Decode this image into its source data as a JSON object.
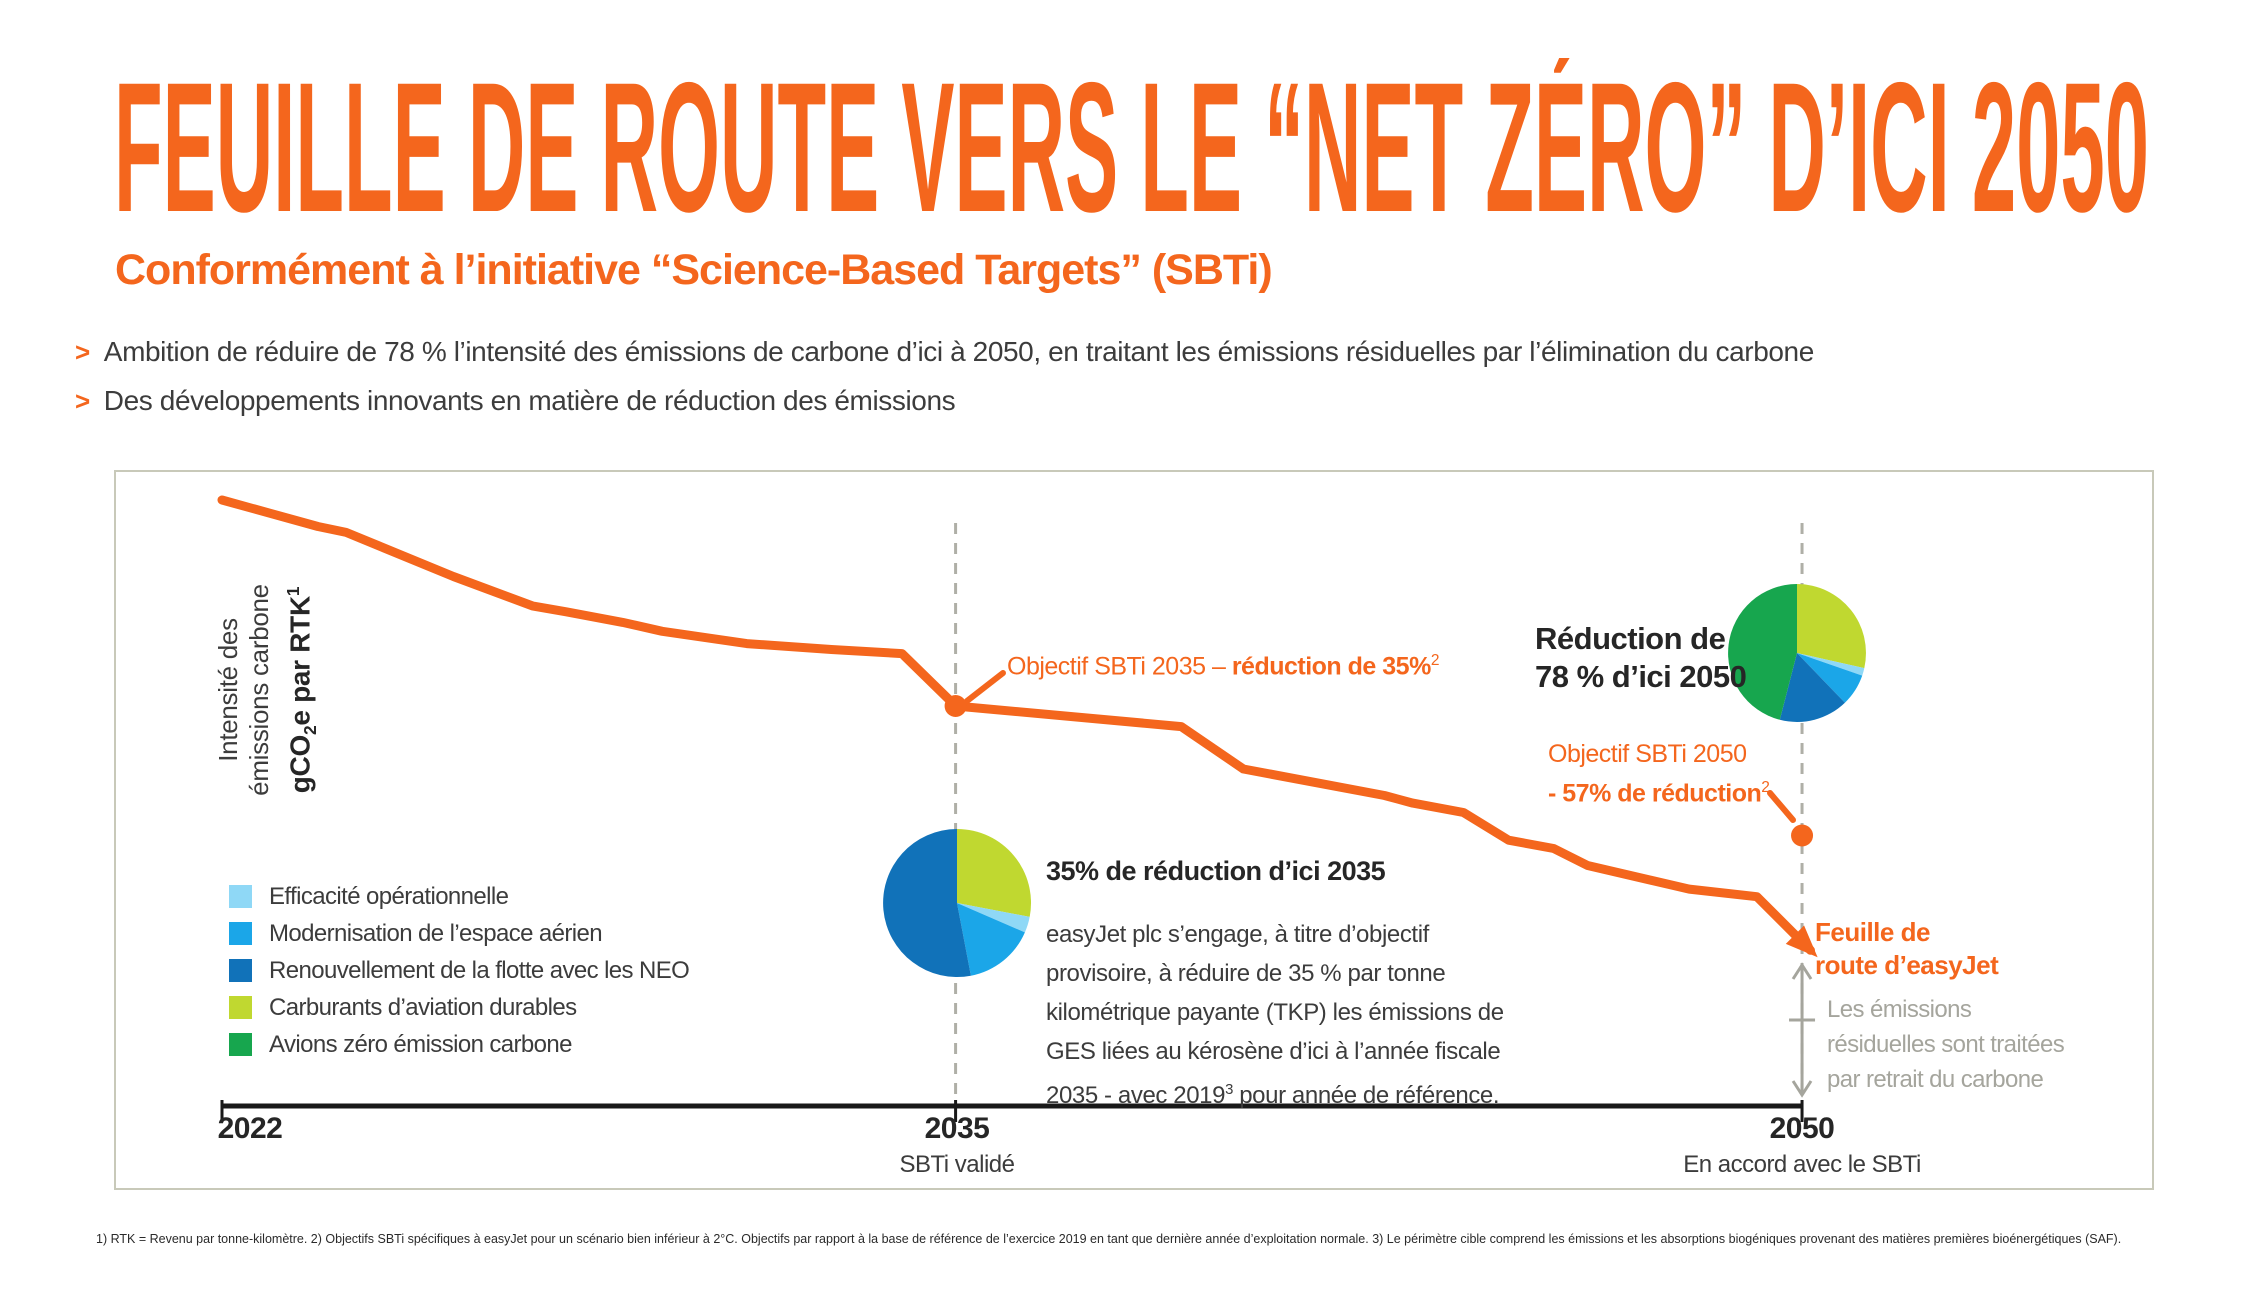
{
  "palette": {
    "orange": "#F4661D",
    "dash_gray": "#AFAFA7",
    "gray_text": "#A5A59D",
    "axis_black": "#191919"
  },
  "header": {
    "title": "FEUILLE DE ROUTE VERS LE “NET ZÉRO” D’ICI 2050",
    "subtitle": "Conformément à l’initiative “Science-Based Targets” (SBTi)"
  },
  "bullets": {
    "marker": ">",
    "items": [
      "Ambition de réduire de 78 % l’intensité des émissions de carbone d’ici à 2050, en traitant les émissions résiduelles par l’élimination du carbone",
      "Des développements innovants en matière de réduction des émissions"
    ]
  },
  "chart": {
    "y_axis": {
      "line1": "Intensité des",
      "line2": "émissions carbone",
      "bold_pre": "gCO",
      "bold_sub": "2",
      "bold_mid": "e par RTK",
      "bold_sup": "1"
    },
    "legend": [
      {
        "label": "Efficacité opérationnelle",
        "color": "#8FD8F6"
      },
      {
        "label": "Modernisation de l’espace aérien",
        "color": "#1BA6E8"
      },
      {
        "label": "Renouvellement de la flotte avec les NEO",
        "color": "#1172B9"
      },
      {
        "label": "Carburants d’aviation durables",
        "color": "#C0D830"
      },
      {
        "label": "Avions zéro émission carbone",
        "color": "#17A64E"
      }
    ],
    "sbti2035": {
      "prefix": "Objectif SBTi 2035 – ",
      "bold": "réduction de 35%",
      "sup": "2"
    },
    "reduction2050": {
      "line1": "Réduction de",
      "line2": "78 % d’ici 2050"
    },
    "sbti2050": {
      "line1": "Objectif SBTi 2050",
      "bold": "- 57% de réduction",
      "sup": "2"
    },
    "box2035": {
      "title": "35% de réduction d’ici 2035",
      "lines": [
        "easyJet plc s’engage, à titre d’objectif",
        "provisoire, à réduire de 35 % par tonne",
        "kilométrique payante (TKP) les émissions de",
        "GES liées au kérosène d’ici à l’année fiscale"
      ],
      "last_pre": "2035 - avec 2019",
      "last_sup": "3",
      "last_post": " pour année de référence."
    },
    "roadmap": {
      "line1": "Feuille de",
      "line2": "route d’easyJet"
    },
    "residual": {
      "line1": "Les émissions",
      "line2": "résiduelles sont traitées",
      "line3": "par retrait du carbone"
    },
    "x_axis": [
      {
        "year": "2022",
        "sub": ""
      },
      {
        "year": "2035",
        "sub": "SBTi validé"
      },
      {
        "year": "2050",
        "sub": "En accord avec le SBTi"
      }
    ]
  },
  "footnote": "1) RTK = Revenu par tonne-kilomètre.  2) Objectifs SBTi spécifiques à easyJet pour un scénario bien inférieur à 2°C. Objectifs par rapport à la base de référence de l’exercice 2019 en tant que dernière année d’exploitation normale.  3) Le périmètre cible comprend les émissions et les absorptions biogéniques provenant des matières premières bioénergétiques (SAF).",
  "chart_data": {
    "type": "line",
    "title": "Feuille de route vers le net zéro d’ici 2050",
    "ylabel": "Intensité des émissions carbone gCO2e par RTK",
    "xlabel": "",
    "x_range": [
      2022,
      2050
    ],
    "x_ticks": [
      "2022",
      "2035",
      "2050"
    ],
    "ylim": [
      0,
      100
    ],
    "grid": false,
    "y_numeric_ticks_shown": false,
    "series": [
      {
        "name": "Feuille de route d’easyJet",
        "color": "#F4661D",
        "unit": "indice estimé (2022 = 100)",
        "points": [
          [
            2022,
            100
          ],
          [
            2023.7,
            95.5
          ],
          [
            2024.2,
            94.5
          ],
          [
            2026.1,
            87
          ],
          [
            2027.5,
            82
          ],
          [
            2028.1,
            81
          ],
          [
            2029.1,
            79.2
          ],
          [
            2029.8,
            77.7
          ],
          [
            2031.3,
            75.6
          ],
          [
            2032.8,
            74.6
          ],
          [
            2034.05,
            73.9
          ],
          [
            2035,
            65
          ],
          [
            2039,
            61.5
          ],
          [
            2040.1,
            54.3
          ],
          [
            2042.6,
            49.8
          ],
          [
            2043.1,
            48.5
          ],
          [
            2044,
            46.9
          ],
          [
            2044.8,
            42.2
          ],
          [
            2045.6,
            40.8
          ],
          [
            2046.2,
            37.9
          ],
          [
            2048,
            33.9
          ],
          [
            2049.2,
            32.6
          ],
          [
            2050.15,
            23.5
          ]
        ]
      }
    ],
    "markers": [
      {
        "year": 2035,
        "value": 65,
        "label": "Objectif SBTi 2035 – réduction de 35%"
      },
      {
        "year": 2050,
        "value": 43,
        "label": "Objectif SBTi 2050 - 57% de réduction"
      }
    ],
    "pies": [
      {
        "name": "Contributions à la réduction de 35% d’ici 2035",
        "slices": [
          {
            "label": "Carburants d’aviation durables",
            "pct": 28,
            "color": "#C0D830"
          },
          {
            "label": "Efficacité opérationnelle",
            "pct": 3.5,
            "color": "#8FD8F6"
          },
          {
            "label": "Modernisation de l’espace aérien",
            "pct": 15.5,
            "color": "#1BA6E8"
          },
          {
            "label": "Renouvellement de la flotte avec les NEO",
            "pct": 53,
            "color": "#1172B9"
          }
        ]
      },
      {
        "name": "Contributions à la réduction de 78% d’ici 2050",
        "slices": [
          {
            "label": "Carburants d’aviation durables",
            "pct": 28.5,
            "color": "#C0D830"
          },
          {
            "label": "Efficacité opérationnelle",
            "pct": 1.8,
            "color": "#8FD8F6"
          },
          {
            "label": "Modernisation de l’espace aérien",
            "pct": 7.5,
            "color": "#1BA6E8"
          },
          {
            "label": "Renouvellement de la flotte avec les NEO",
            "pct": 16.2,
            "color": "#1172B9"
          },
          {
            "label": "Avions zéro émission carbone",
            "pct": 46,
            "color": "#17A64E"
          }
        ]
      }
    ]
  }
}
